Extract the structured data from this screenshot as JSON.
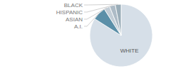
{
  "chart_data": {
    "type": "pie",
    "categories": [
      "WHITE",
      "A.I.",
      "ASIAN",
      "HISPANIC",
      "BLACK"
    ],
    "values": [
      84,
      7,
      3,
      3,
      3
    ],
    "colors": [
      "#d6dfe8",
      "#5b8fa8",
      "#c2cdd6",
      "#adbbc6",
      "#9aadb8"
    ]
  }
}
